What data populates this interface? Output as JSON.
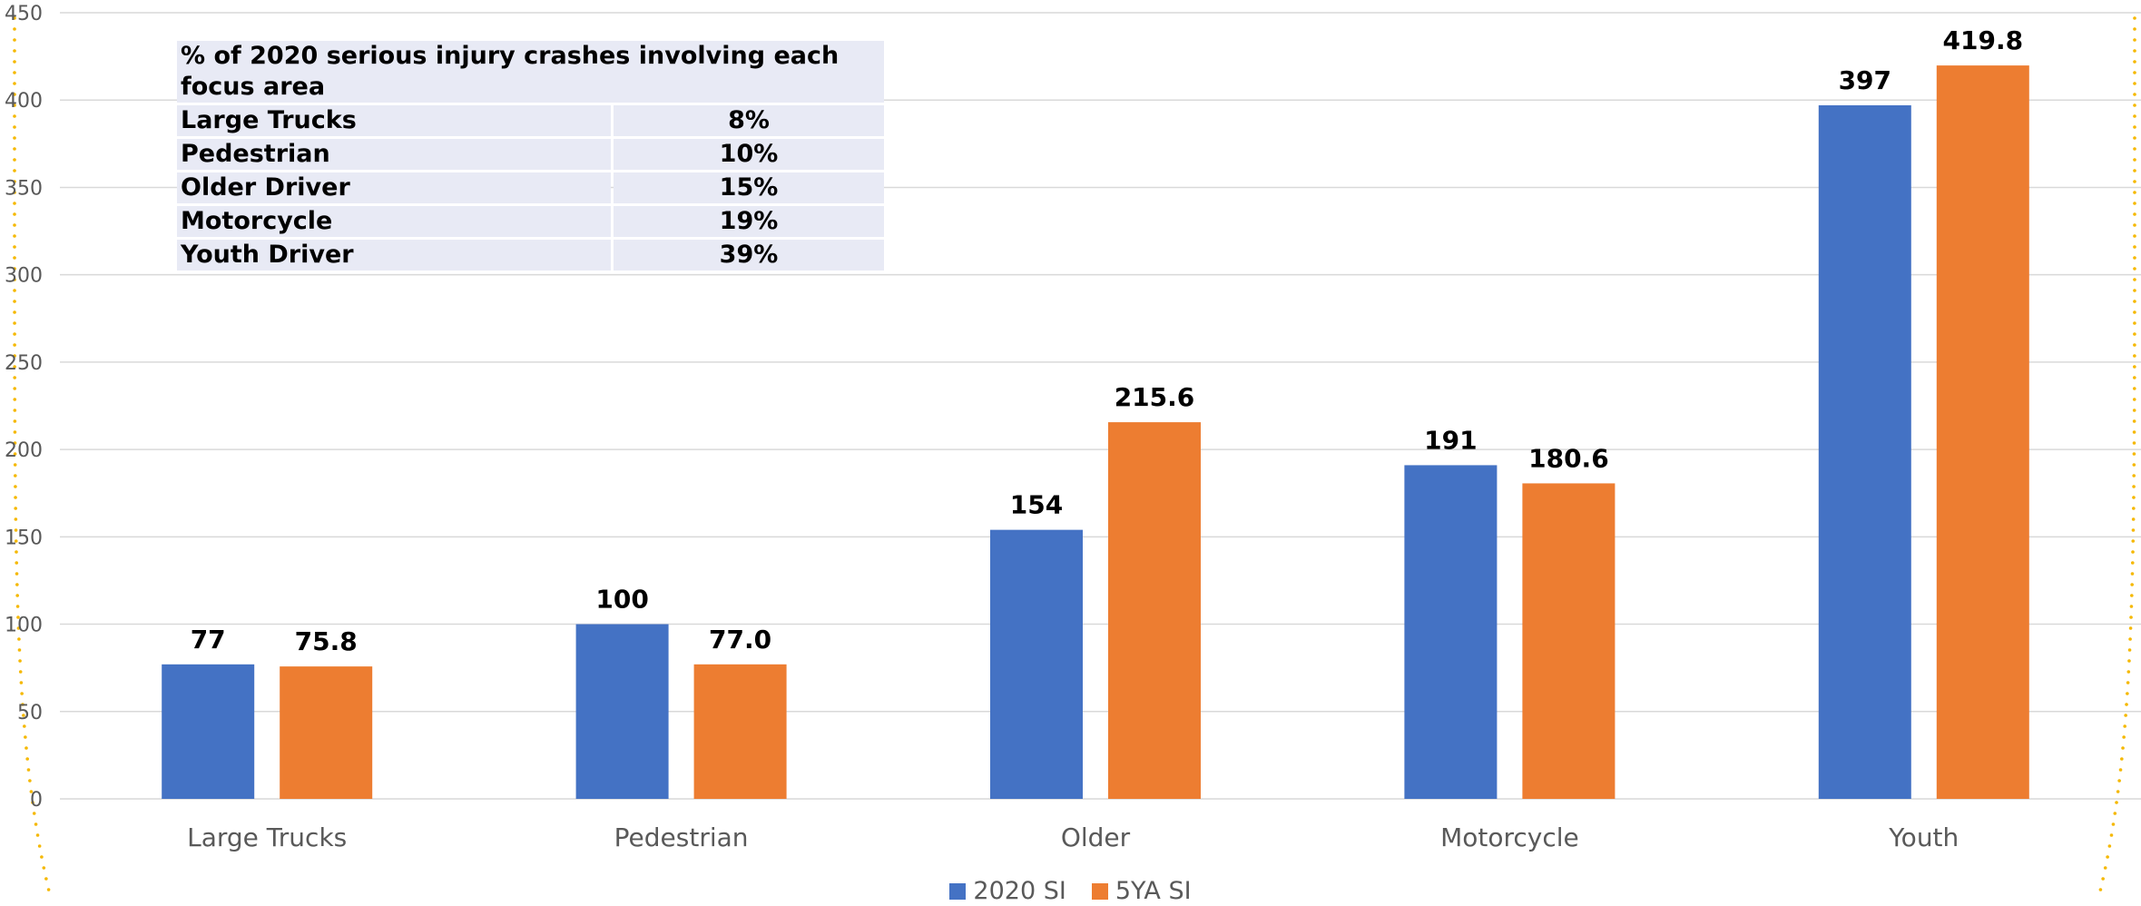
{
  "chart_data": {
    "type": "bar",
    "categories": [
      "Large Trucks",
      "Pedestrian",
      "Older",
      "Motorcycle",
      "Youth"
    ],
    "series": [
      {
        "name": "2020 SI",
        "color": "#4472C4",
        "values": [
          77,
          100,
          154,
          191,
          397
        ],
        "labels": [
          "77",
          "100",
          "154",
          "191",
          "397"
        ]
      },
      {
        "name": "5YA SI",
        "color": "#ED7D31",
        "values": [
          75.8,
          77.0,
          215.6,
          180.6,
          419.8
        ],
        "labels": [
          "75.8",
          "77.0",
          "215.6",
          "180.6",
          "419.8"
        ]
      }
    ],
    "y_ticks": [
      "0",
      "50",
      "100",
      "150",
      "200",
      "250",
      "300",
      "350",
      "400",
      "450"
    ],
    "ylim": [
      0,
      450
    ],
    "grid": true,
    "legend_position": "bottom"
  },
  "inset_table": {
    "header": "% of 2020 serious injury crashes involving each focus area",
    "rows": [
      {
        "label": "Large Trucks",
        "value": "8%"
      },
      {
        "label": "Pedestrian",
        "value": "10%"
      },
      {
        "label": "Older Driver",
        "value": "15%"
      },
      {
        "label": "Motorcycle",
        "value": "19%"
      },
      {
        "label": "Youth Driver",
        "value": "39%"
      }
    ]
  },
  "colors": {
    "grid": "#d9d9d9",
    "frame_dots": "#F5B800"
  }
}
